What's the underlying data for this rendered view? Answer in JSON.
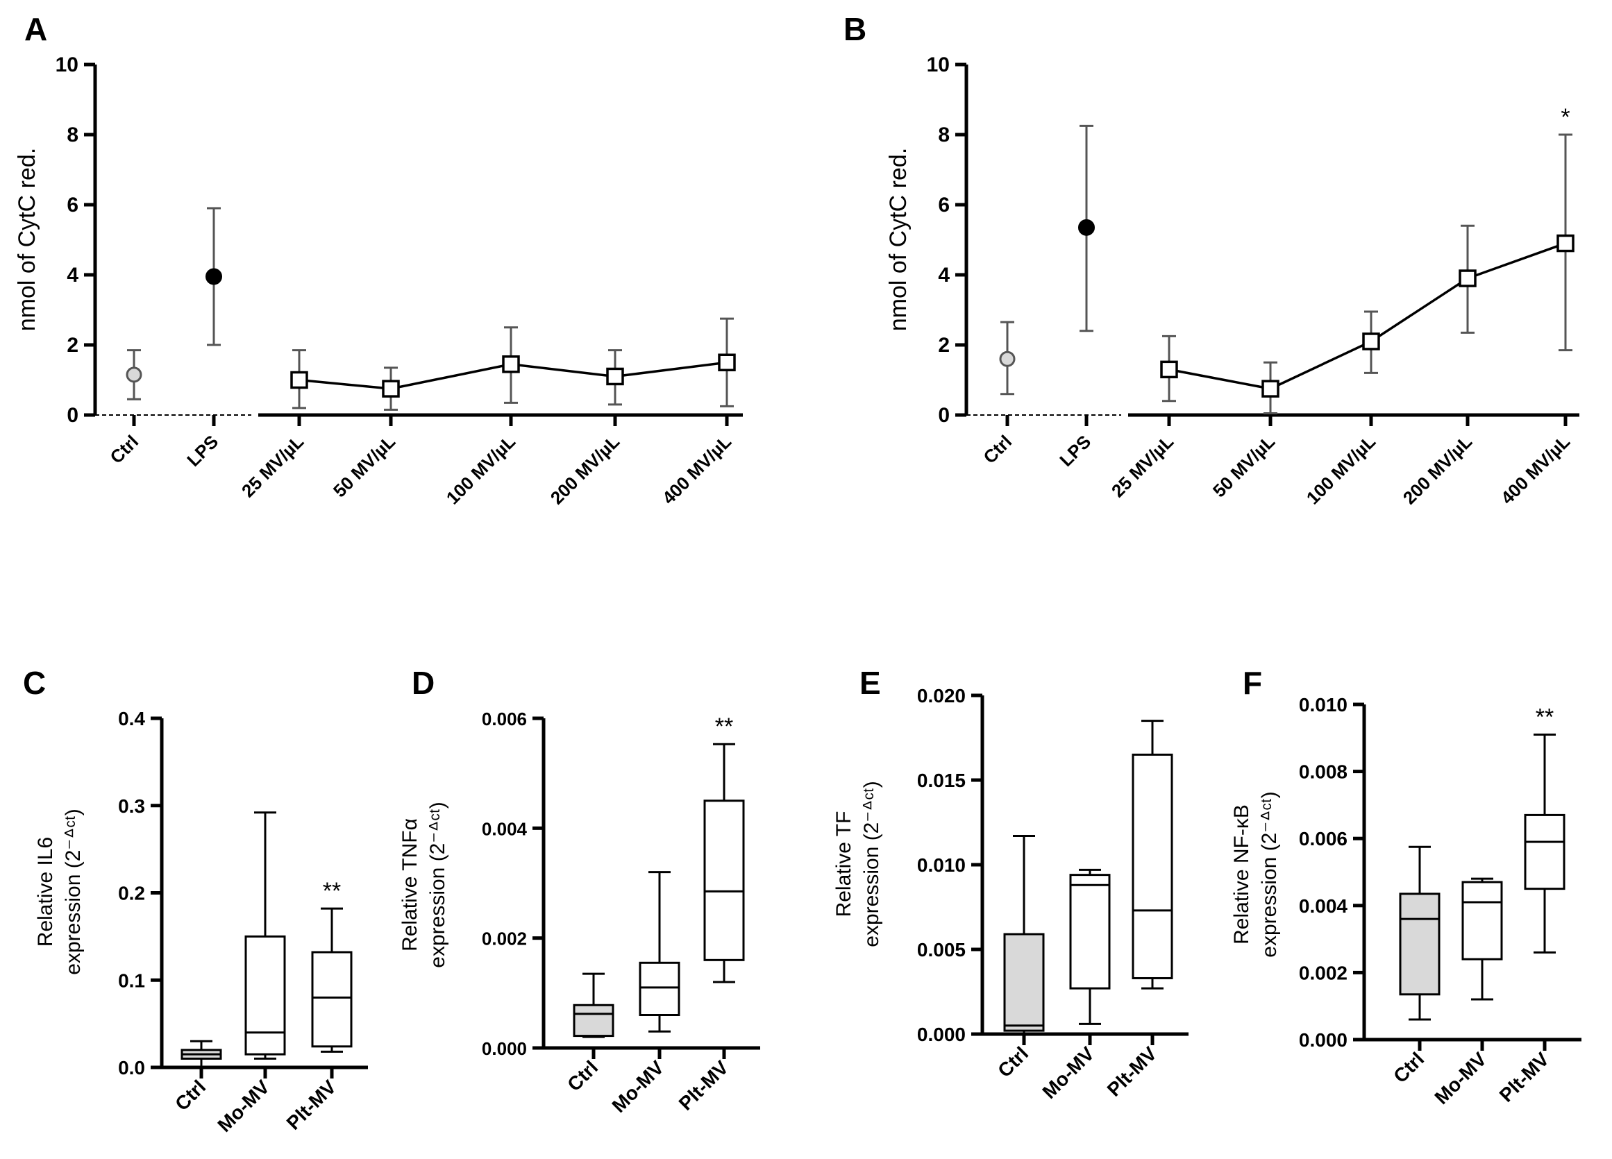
{
  "chart_data": [
    {
      "id": "A",
      "letter": "A",
      "type": "scatter",
      "ylabel": "nmol of CytC  red.",
      "ylim": [
        0,
        10
      ],
      "yticks": [
        0,
        2,
        4,
        6,
        8,
        10
      ],
      "ytick_labels": [
        "0",
        "2",
        "4",
        "6",
        "8",
        "10"
      ],
      "categories": [
        "Ctrl",
        "LPS",
        "25 MV/µL",
        "50 MV/µL",
        "100 MV/µL",
        "200 MV/µL",
        "400 MV/µL"
      ],
      "series": [
        {
          "name": "Ctrl",
          "marker": "circle-gray",
          "points": [
            {
              "cat": 0,
              "y": 1.15,
              "lo": 0.45,
              "hi": 1.85
            }
          ]
        },
        {
          "name": "LPS",
          "marker": "circle-black",
          "points": [
            {
              "cat": 1,
              "y": 3.95,
              "lo": 2.0,
              "hi": 5.9
            }
          ]
        },
        {
          "name": "MV",
          "marker": "square-open",
          "connected": true,
          "points": [
            {
              "cat": 2,
              "y": 1.0,
              "lo": 0.2,
              "hi": 1.85
            },
            {
              "cat": 3,
              "y": 0.75,
              "lo": 0.15,
              "hi": 1.35
            },
            {
              "cat": 4,
              "y": 1.45,
              "lo": 0.35,
              "hi": 2.5
            },
            {
              "cat": 5,
              "y": 1.1,
              "lo": 0.3,
              "hi": 1.85
            },
            {
              "cat": 6,
              "y": 1.5,
              "lo": 0.25,
              "hi": 2.75
            }
          ]
        }
      ],
      "annotations": []
    },
    {
      "id": "B",
      "letter": "B",
      "type": "scatter",
      "ylabel": "nmol of CytC  red.",
      "ylim": [
        0,
        10
      ],
      "yticks": [
        0,
        2,
        4,
        6,
        8,
        10
      ],
      "ytick_labels": [
        "0",
        "2",
        "4",
        "6",
        "8",
        "10"
      ],
      "categories": [
        "Ctrl",
        "LPS",
        "25 MV/µL",
        "50 MV/µL",
        "100 MV/µL",
        "200 MV/µL",
        "400 MV/µL"
      ],
      "series": [
        {
          "name": "Ctrl",
          "marker": "circle-gray",
          "points": [
            {
              "cat": 0,
              "y": 1.6,
              "lo": 0.6,
              "hi": 2.65
            }
          ]
        },
        {
          "name": "LPS",
          "marker": "circle-black",
          "points": [
            {
              "cat": 1,
              "y": 5.35,
              "lo": 2.4,
              "hi": 8.25
            }
          ]
        },
        {
          "name": "MV",
          "marker": "square-open",
          "connected": true,
          "points": [
            {
              "cat": 2,
              "y": 1.3,
              "lo": 0.4,
              "hi": 2.25
            },
            {
              "cat": 3,
              "y": 0.75,
              "lo": 0.05,
              "hi": 1.5
            },
            {
              "cat": 4,
              "y": 2.1,
              "lo": 1.2,
              "hi": 2.95
            },
            {
              "cat": 5,
              "y": 3.9,
              "lo": 2.35,
              "hi": 5.4
            },
            {
              "cat": 6,
              "y": 4.9,
              "lo": 1.85,
              "hi": 8.0
            }
          ]
        }
      ],
      "annotations": [
        {
          "cat": 6,
          "y": 8.0,
          "text": "*"
        }
      ]
    },
    {
      "id": "C",
      "letter": "C",
      "type": "box",
      "ylabel": [
        "Relative IL6",
        "expression (2⁻ᐞᶜᵗ)"
      ],
      "ylim": [
        0,
        0.4
      ],
      "yticks": [
        0,
        0.1,
        0.2,
        0.3,
        0.4
      ],
      "ytick_labels": [
        "0.0",
        "0.1",
        "0.2",
        "0.3",
        "0.4"
      ],
      "categories": [
        "Ctrl",
        "Mo-MV",
        "Plt-MV"
      ],
      "boxes": [
        {
          "min": 0.0,
          "q1": 0.01,
          "median": 0.015,
          "q3": 0.02,
          "max": 0.03,
          "fill": "#d9d9d9"
        },
        {
          "min": 0.01,
          "q1": 0.015,
          "median": 0.04,
          "q3": 0.15,
          "max": 0.292,
          "fill": "#ffffff"
        },
        {
          "min": 0.018,
          "q1": 0.024,
          "median": 0.08,
          "q3": 0.132,
          "max": 0.182,
          "fill": "#ffffff"
        }
      ],
      "annotations": [
        {
          "cat": 2,
          "y": 0.182,
          "text": "**"
        }
      ]
    },
    {
      "id": "D",
      "letter": "D",
      "type": "box",
      "ylabel": [
        "Relative TNFα",
        "expression (2⁻ᐞᶜᵗ)"
      ],
      "ylim": [
        0,
        0.006
      ],
      "yticks": [
        0,
        0.002,
        0.004,
        0.006
      ],
      "ytick_labels": [
        "0.000",
        "0.002",
        "0.004",
        "0.006"
      ],
      "categories": [
        "Ctrl",
        "Mo-MV",
        "Plt-MV"
      ],
      "boxes": [
        {
          "min": 0.0002,
          "q1": 0.00022,
          "median": 0.00062,
          "q3": 0.00078,
          "max": 0.00135,
          "fill": "#d9d9d9"
        },
        {
          "min": 0.0003,
          "q1": 0.0006,
          "median": 0.0011,
          "q3": 0.00155,
          "max": 0.0032,
          "fill": "#ffffff"
        },
        {
          "min": 0.0012,
          "q1": 0.0016,
          "median": 0.00285,
          "q3": 0.0045,
          "max": 0.00553,
          "fill": "#ffffff"
        }
      ],
      "annotations": [
        {
          "cat": 2,
          "y": 0.00553,
          "text": "**"
        }
      ]
    },
    {
      "id": "E",
      "letter": "E",
      "type": "box",
      "ylabel": [
        "Relative TF",
        "expression (2⁻ᐞᶜᵗ)"
      ],
      "ylim": [
        0,
        0.02
      ],
      "yticks": [
        0,
        0.005,
        0.01,
        0.015,
        0.02
      ],
      "ytick_labels": [
        "0.000",
        "0.005",
        "0.010",
        "0.015",
        "0.020"
      ],
      "categories": [
        "Ctrl",
        "Mo-MV",
        "Plt-MV"
      ],
      "boxes": [
        {
          "min": 0.0,
          "q1": 0.0002,
          "median": 0.0005,
          "q3": 0.0059,
          "max": 0.0117,
          "fill": "#d9d9d9"
        },
        {
          "min": 0.0006,
          "q1": 0.0027,
          "median": 0.0088,
          "q3": 0.0094,
          "max": 0.0097,
          "fill": "#ffffff"
        },
        {
          "min": 0.0027,
          "q1": 0.0033,
          "median": 0.0073,
          "q3": 0.0165,
          "max": 0.0185,
          "fill": "#ffffff"
        }
      ],
      "annotations": []
    },
    {
      "id": "F",
      "letter": "F",
      "type": "box",
      "ylabel": [
        "Relative NF-κB",
        "expression (2⁻ᐞᶜᵗ)"
      ],
      "ylim": [
        0,
        0.01
      ],
      "yticks": [
        0,
        0.002,
        0.004,
        0.006,
        0.008,
        0.01
      ],
      "ytick_labels": [
        "0.000",
        "0.002",
        "0.004",
        "0.006",
        "0.008",
        "0.010"
      ],
      "categories": [
        "Ctrl",
        "Mo-MV",
        "Plt-MV"
      ],
      "boxes": [
        {
          "min": 0.0006,
          "q1": 0.00135,
          "median": 0.0036,
          "q3": 0.00435,
          "max": 0.00575,
          "fill": "#d9d9d9"
        },
        {
          "min": 0.0012,
          "q1": 0.0024,
          "median": 0.0041,
          "q3": 0.0047,
          "max": 0.0048,
          "fill": "#ffffff"
        },
        {
          "min": 0.0026,
          "q1": 0.0045,
          "median": 0.0059,
          "q3": 0.0067,
          "max": 0.0091,
          "fill": "#ffffff"
        }
      ],
      "annotations": [
        {
          "cat": 2,
          "y": 0.0091,
          "text": "**"
        }
      ]
    }
  ]
}
